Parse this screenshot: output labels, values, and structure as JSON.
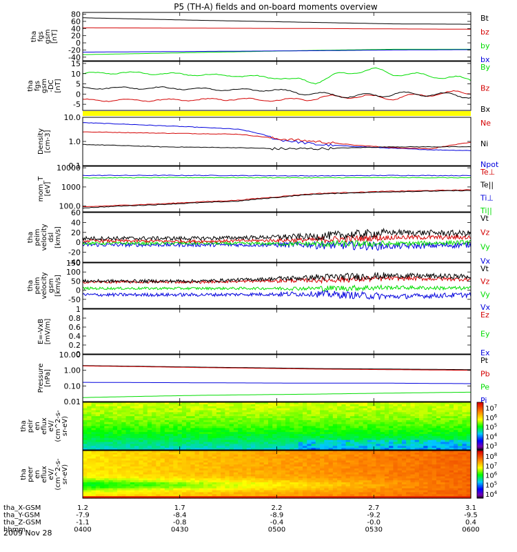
{
  "title": "P5 (TH-A) fields and on-board moments overview",
  "date_label": "2009 Nov 28",
  "colors": {
    "black": "#000000",
    "red": "#d40000",
    "green": "#00dd00",
    "blue": "#0000dd",
    "yellow": "#ffff00"
  },
  "chart_data": [
    {
      "type": "line",
      "id": "fgs_full",
      "ylabel": [
        "tha",
        "fgs",
        "gsm",
        "[nT]"
      ],
      "ylim": [
        -50,
        85
      ],
      "yticks": [
        80,
        60,
        40,
        20,
        0,
        -20,
        -40
      ],
      "legend": [
        {
          "name": "Bt",
          "color": "black"
        },
        {
          "name": "bz",
          "color": "red"
        },
        {
          "name": "by",
          "color": "green"
        },
        {
          "name": "bx",
          "color": "blue"
        }
      ],
      "series": [
        {
          "name": "Bt",
          "color": "black",
          "x": [
            0,
            0.3,
            0.6,
            0.8,
            1
          ],
          "y": [
            70,
            63,
            57,
            53,
            52
          ]
        },
        {
          "name": "bz",
          "color": "red",
          "x": [
            0,
            0.3,
            0.6,
            0.8,
            1
          ],
          "y": [
            42,
            41,
            40,
            39,
            38
          ]
        },
        {
          "name": "by",
          "color": "green",
          "x": [
            0,
            0.3,
            0.6,
            0.8,
            1
          ],
          "y": [
            -33,
            -27,
            -21,
            -18,
            -18
          ]
        },
        {
          "name": "bx",
          "color": "blue",
          "x": [
            0,
            0.3,
            0.6,
            0.8,
            1
          ],
          "y": [
            -26,
            -24,
            -22,
            -20,
            -19
          ]
        }
      ]
    },
    {
      "type": "line",
      "id": "fgs_detrend",
      "ylabel": [
        "tha",
        "fgs",
        "gsm",
        "-DC",
        "[nT]"
      ],
      "ylim": [
        -8,
        16
      ],
      "yticks": [
        15,
        10,
        5,
        0,
        -5
      ],
      "legend": [
        {
          "name": "By",
          "color": "green"
        },
        {
          "name": "Bz",
          "color": "red"
        },
        {
          "name": "Bx",
          "color": "black"
        }
      ],
      "series": [
        {
          "name": "By",
          "color": "green",
          "x": [
            0,
            0.1,
            0.2,
            0.3,
            0.4,
            0.5,
            0.55,
            0.6,
            0.65,
            0.7,
            0.75,
            0.8,
            0.9,
            1
          ],
          "y": [
            10,
            10.5,
            10,
            9.5,
            9,
            8,
            7,
            6,
            9,
            11,
            12,
            10,
            9,
            7
          ]
        },
        {
          "name": "Bz",
          "color": "red",
          "x": [
            0,
            0.2,
            0.4,
            0.5,
            0.6,
            0.7,
            0.8,
            0.9,
            1
          ],
          "y": [
            -3,
            -3,
            -2.5,
            -3,
            -2,
            -1,
            -2,
            0,
            1
          ]
        },
        {
          "name": "Bx",
          "color": "black",
          "x": [
            0,
            0.2,
            0.4,
            0.5,
            0.6,
            0.7,
            0.8,
            0.9,
            1
          ],
          "y": [
            3,
            3,
            2,
            2,
            0,
            -1,
            0,
            0,
            -1
          ]
        }
      ]
    },
    {
      "type": "line",
      "id": "density",
      "scale": "log",
      "ylabel": [
        "Density",
        "[cm-3]"
      ],
      "ylim": [
        0.1,
        10
      ],
      "yticks": [
        10.0,
        1.0,
        0.1
      ],
      "legend": [
        {
          "name": "Ne",
          "color": "red"
        },
        {
          "name": "Ni",
          "color": "black"
        },
        {
          "name": "Npot",
          "color": "blue"
        }
      ],
      "series": [
        {
          "name": "Npot",
          "color": "blue",
          "x": [
            0,
            0.2,
            0.4,
            0.5,
            0.6,
            0.7,
            0.8,
            0.9,
            1
          ],
          "y": [
            6.0,
            4.5,
            3.2,
            1.2,
            0.75,
            0.62,
            0.52,
            0.45,
            0.42
          ]
        },
        {
          "name": "Ne",
          "color": "red",
          "x": [
            0,
            0.2,
            0.4,
            0.5,
            0.6,
            0.7,
            0.8,
            0.9,
            1
          ],
          "y": [
            2.5,
            2.2,
            2.0,
            1.3,
            1.0,
            0.7,
            0.55,
            0.5,
            0.9
          ]
        },
        {
          "name": "Ni",
          "color": "black",
          "x": [
            0,
            0.2,
            0.4,
            0.5,
            0.6,
            0.7,
            0.8,
            0.9,
            1
          ],
          "y": [
            0.75,
            0.6,
            0.55,
            0.5,
            0.5,
            0.55,
            0.6,
            0.6,
            0.6
          ]
        }
      ]
    },
    {
      "type": "line",
      "id": "temperature",
      "scale": "log",
      "ylabel": [
        "mom_T",
        "[eV]"
      ],
      "ylim": [
        50,
        12000
      ],
      "yticks": [
        10000,
        1000,
        100
      ],
      "legend": [
        {
          "name": "Te⊥",
          "color": "red"
        },
        {
          "name": "Te||",
          "color": "black"
        },
        {
          "name": "Ti⊥",
          "color": "blue"
        },
        {
          "name": "Ti||",
          "color": "green"
        }
      ],
      "series": [
        {
          "name": "Ti⊥",
          "color": "blue",
          "x": [
            0,
            0.3,
            0.6,
            0.8,
            1
          ],
          "y": [
            4000,
            4000,
            3800,
            4000,
            3900
          ]
        },
        {
          "name": "Ti||",
          "color": "green",
          "x": [
            0,
            0.3,
            0.6,
            0.8,
            1
          ],
          "y": [
            3000,
            3100,
            3000,
            3100,
            3000
          ]
        },
        {
          "name": "Te⊥",
          "color": "red",
          "x": [
            0,
            0.2,
            0.4,
            0.5,
            0.6,
            0.8,
            1
          ],
          "y": [
            90,
            130,
            200,
            300,
            450,
            600,
            700
          ]
        },
        {
          "name": "Te||",
          "color": "black",
          "x": [
            0,
            0.2,
            0.4,
            0.5,
            0.6,
            0.8,
            1
          ],
          "y": [
            80,
            120,
            180,
            280,
            420,
            560,
            650
          ]
        }
      ]
    },
    {
      "type": "line",
      "id": "velocity_dsl",
      "ylabel": [
        "tha",
        "peim",
        "velocity",
        "dsl",
        "[km/s]"
      ],
      "ylim": [
        -40,
        60
      ],
      "yticks": [
        60,
        40,
        20,
        0,
        -20,
        -40
      ],
      "legend": [
        {
          "name": "Vt",
          "color": "black"
        },
        {
          "name": "Vz",
          "color": "red"
        },
        {
          "name": "Vy",
          "color": "green"
        },
        {
          "name": "Vx",
          "color": "blue"
        }
      ],
      "series": [
        {
          "name": "Vx",
          "color": "blue",
          "x": [
            0,
            0.3,
            0.6,
            0.8,
            1
          ],
          "y": [
            -5,
            -5,
            -5,
            -8,
            -5
          ]
        },
        {
          "name": "Vy",
          "color": "green",
          "x": [
            0,
            0.3,
            0.6,
            0.8,
            1
          ],
          "y": [
            -2,
            -2,
            -3,
            -3,
            0
          ]
        },
        {
          "name": "Vz",
          "color": "red",
          "x": [
            0,
            0.3,
            0.6,
            0.8,
            1
          ],
          "y": [
            3,
            2,
            5,
            10,
            10
          ]
        },
        {
          "name": "Vt",
          "color": "black",
          "x": [
            0,
            0.3,
            0.6,
            0.8,
            1
          ],
          "y": [
            8,
            8,
            12,
            20,
            18
          ]
        }
      ]
    },
    {
      "type": "line",
      "id": "velocity_gsm",
      "ylabel": [
        "tha",
        "peim",
        "velocity",
        "gsm",
        "[km/s]"
      ],
      "ylim": [
        -100,
        150
      ],
      "yticks": [
        150,
        100,
        50,
        0,
        -50
      ],
      "legend": [
        {
          "name": "Vt",
          "color": "black"
        },
        {
          "name": "Vz",
          "color": "red"
        },
        {
          "name": "Vy",
          "color": "green"
        },
        {
          "name": "Vx",
          "color": "blue"
        }
      ],
      "series": [
        {
          "name": "Vx",
          "color": "blue",
          "x": [
            0,
            0.3,
            0.6,
            0.8,
            1
          ],
          "y": [
            -25,
            -25,
            -20,
            -35,
            -25
          ]
        },
        {
          "name": "Vy",
          "color": "green",
          "x": [
            0,
            0.3,
            0.6,
            0.8,
            1
          ],
          "y": [
            10,
            10,
            10,
            15,
            10
          ]
        },
        {
          "name": "Vz",
          "color": "red",
          "x": [
            0,
            0.3,
            0.6,
            0.8,
            1
          ],
          "y": [
            45,
            45,
            55,
            65,
            60
          ]
        },
        {
          "name": "Vt",
          "color": "black",
          "x": [
            0,
            0.3,
            0.6,
            0.8,
            1
          ],
          "y": [
            50,
            50,
            70,
            80,
            75
          ]
        }
      ]
    },
    {
      "type": "line",
      "id": "efield",
      "ylabel": [
        "E=-VxB",
        "[mV/m]"
      ],
      "ylim": [
        0,
        1.0
      ],
      "yticks": [
        1.0,
        0.8,
        0.6,
        0.4,
        0.2,
        0.0
      ],
      "legend": [
        {
          "name": "Ez",
          "color": "red"
        },
        {
          "name": "Ey",
          "color": "green"
        },
        {
          "name": "Ex",
          "color": "blue"
        }
      ],
      "series": []
    },
    {
      "type": "line",
      "id": "pressure",
      "scale": "log",
      "ylabel": [
        "Pressure",
        "[nPa]"
      ],
      "ylim": [
        0.01,
        10
      ],
      "yticks": [
        10.0,
        1.0,
        0.1,
        0.01
      ],
      "yticklabels": [
        "10.00",
        "1.00",
        "0.10",
        "0.01"
      ],
      "legend": [
        {
          "name": "Pt",
          "color": "black"
        },
        {
          "name": "Pb",
          "color": "red"
        },
        {
          "name": "Pe",
          "color": "green"
        },
        {
          "name": "Pi",
          "color": "blue"
        }
      ],
      "series": [
        {
          "name": "Pt",
          "color": "black",
          "x": [
            0,
            0.3,
            0.6,
            0.8,
            1
          ],
          "y": [
            2.0,
            1.6,
            1.3,
            1.2,
            1.1
          ]
        },
        {
          "name": "Pb",
          "color": "red",
          "x": [
            0,
            0.3,
            0.6,
            0.8,
            1
          ],
          "y": [
            1.9,
            1.5,
            1.2,
            1.1,
            1.0
          ]
        },
        {
          "name": "Pi",
          "color": "blue",
          "x": [
            0,
            0.3,
            0.6,
            0.8,
            1
          ],
          "y": [
            0.17,
            0.16,
            0.15,
            0.15,
            0.14
          ]
        },
        {
          "name": "Pe",
          "color": "green",
          "x": [
            0,
            0.3,
            0.6,
            0.8,
            1
          ],
          "y": [
            0.018,
            0.025,
            0.03,
            0.035,
            0.04
          ]
        }
      ]
    },
    {
      "type": "heatmap",
      "id": "peir_spec",
      "scale": "log",
      "ylabel": [
        "tha",
        "peir",
        "en",
        "eflux",
        "eV/",
        "(cm^2-s-",
        "sr-eV)"
      ],
      "ylim": [
        7,
        25000
      ],
      "yticks": [
        10000,
        1000,
        100,
        10
      ],
      "colorbar": {
        "ticks": [
          "10^7",
          "10^6",
          "10^5",
          "10^4",
          "10^3"
        ]
      }
    },
    {
      "type": "heatmap",
      "id": "peer_spec",
      "scale": "log",
      "ylabel": [
        "tha",
        "peer",
        "en",
        "eflux",
        "eV/",
        "(cm^2-s-",
        "sr-eV)"
      ],
      "ylim": [
        7,
        25000
      ],
      "yticks": [
        10000,
        1000,
        100,
        10
      ],
      "colorbar": {
        "ticks": [
          "10^8",
          "10^7",
          "10^6",
          "10^5",
          "10^4"
        ]
      }
    }
  ],
  "time_axis": {
    "rows": [
      {
        "label": "tha_X-GSM",
        "values": [
          "1.2",
          "1.7",
          "2.2",
          "2.7",
          "3.1"
        ]
      },
      {
        "label": "tha_Y-GSM",
        "values": [
          "-7.9",
          "-8.4",
          "-8.9",
          "-9.2",
          "-9.5"
        ]
      },
      {
        "label": "tha_Z-GSM",
        "values": [
          "-1.1",
          "-0.8",
          "-0.4",
          "-0.0",
          "0.4"
        ]
      },
      {
        "label": "hhmm",
        "values": [
          "0400",
          "0430",
          "0500",
          "0530",
          "0600"
        ]
      }
    ]
  }
}
